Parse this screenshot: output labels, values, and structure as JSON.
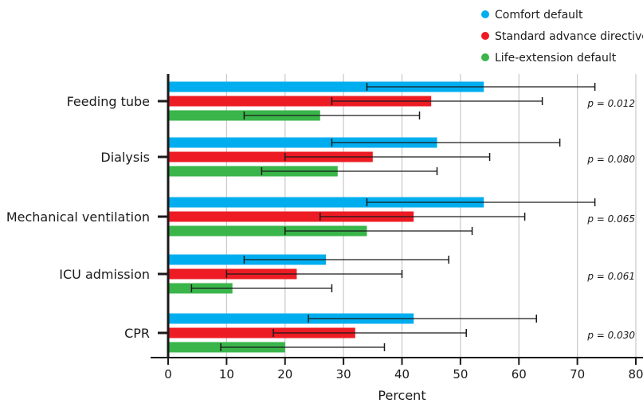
{
  "chart_data": {
    "type": "bar",
    "orientation": "horizontal",
    "categories": [
      "Feeding tube",
      "Dialysis",
      "Mechanical ventilation",
      "ICU admission",
      "CPR"
    ],
    "series": [
      {
        "name": "Comfort default",
        "color": "#00aeef",
        "values": [
          54,
          46,
          54,
          27,
          42
        ],
        "ci_low": [
          34,
          28,
          34,
          13,
          24
        ],
        "ci_high": [
          73,
          67,
          73,
          48,
          63
        ]
      },
      {
        "name": "Standard advance directive",
        "color": "#ed1c24",
        "values": [
          45,
          35,
          42,
          22,
          32
        ],
        "ci_low": [
          28,
          20,
          26,
          10,
          18
        ],
        "ci_high": [
          64,
          55,
          61,
          40,
          51
        ]
      },
      {
        "name": "Life-extension default",
        "color": "#39b54a",
        "values": [
          26,
          29,
          34,
          11,
          20
        ],
        "ci_low": [
          13,
          16,
          20,
          4,
          9
        ],
        "ci_high": [
          43,
          46,
          52,
          28,
          37
        ]
      }
    ],
    "p_values": [
      "p = 0.012",
      "p = 0.080",
      "p = 0.065",
      "p = 0.061",
      "p = 0.030"
    ],
    "xlabel": "Percent",
    "xlim": [
      0,
      80
    ],
    "xticks": [
      0,
      10,
      20,
      30,
      40,
      50,
      60,
      70,
      80
    ],
    "grid": "vertical",
    "legend_position": "top-right"
  }
}
